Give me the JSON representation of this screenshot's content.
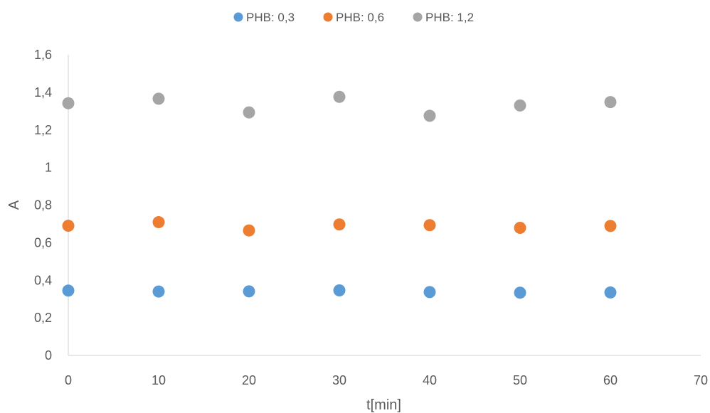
{
  "chart_data": {
    "type": "scatter",
    "xlabel": "t[min]",
    "ylabel": "A",
    "xlim": [
      0,
      70
    ],
    "ylim": [
      0,
      1.6
    ],
    "x_ticks": [
      "0",
      "10",
      "20",
      "30",
      "40",
      "50",
      "60",
      "70"
    ],
    "x_tick_values": [
      0,
      10,
      20,
      30,
      40,
      50,
      60,
      70
    ],
    "y_ticks": [
      "0",
      "0,2",
      "0,4",
      "0,6",
      "0,8",
      "1",
      "1,2",
      "1,4",
      "1,6"
    ],
    "y_tick_values": [
      0,
      0.2,
      0.4,
      0.6,
      0.8,
      1.0,
      1.2,
      1.4,
      1.6
    ],
    "grid": false,
    "legend_position": "top-center",
    "series": [
      {
        "name": "PHB: 0,3",
        "color": "#5b9bd5",
        "x": [
          0,
          10,
          20,
          30,
          40,
          50,
          60
        ],
        "y": [
          0.345,
          0.34,
          0.341,
          0.346,
          0.337,
          0.334,
          0.335
        ]
      },
      {
        "name": "PHB: 0,6",
        "color": "#ed7d31",
        "x": [
          0,
          10,
          20,
          30,
          40,
          50,
          60
        ],
        "y": [
          0.69,
          0.709,
          0.665,
          0.697,
          0.693,
          0.679,
          0.689
        ]
      },
      {
        "name": "PHB: 1,2",
        "color": "#a5a5a5",
        "x": [
          0,
          10,
          20,
          30,
          40,
          50,
          60
        ],
        "y": [
          1.342,
          1.366,
          1.293,
          1.376,
          1.275,
          1.33,
          1.348
        ]
      }
    ]
  }
}
